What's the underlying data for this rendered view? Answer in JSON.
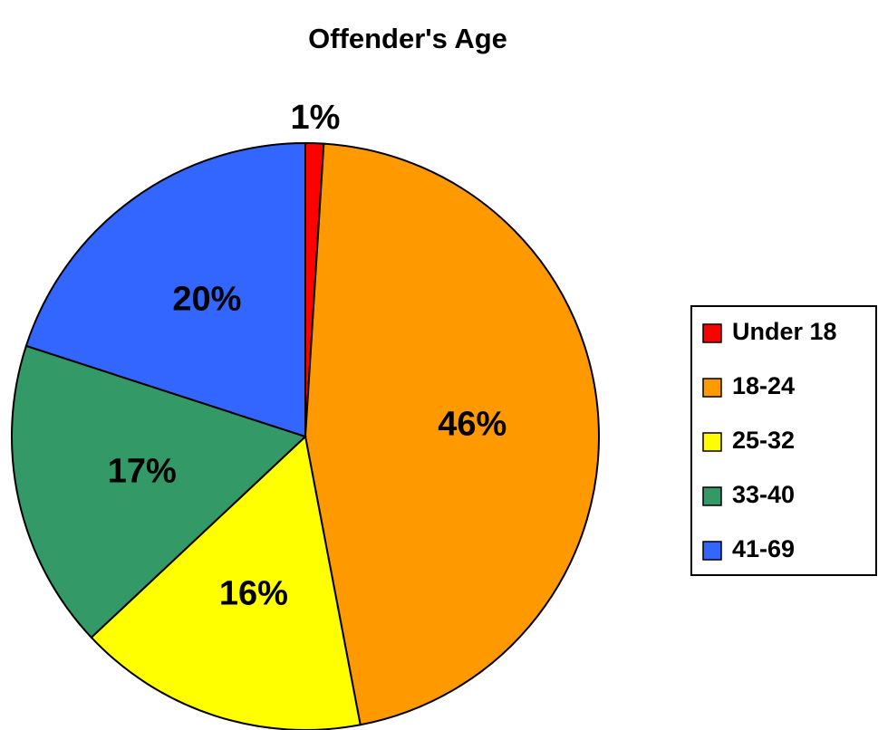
{
  "chart_data": {
    "type": "pie",
    "title": "Offender's Age",
    "categories": [
      "Under 18",
      "18-24",
      "25-32",
      "33-40",
      "41-69"
    ],
    "values": [
      1,
      46,
      16,
      17,
      20
    ],
    "value_labels": [
      "1%",
      "46%",
      "16%",
      "17%",
      "20%"
    ],
    "colors": [
      "#ff0000",
      "#ff9900",
      "#ffff00",
      "#339966",
      "#3366ff"
    ],
    "legend": "right"
  }
}
